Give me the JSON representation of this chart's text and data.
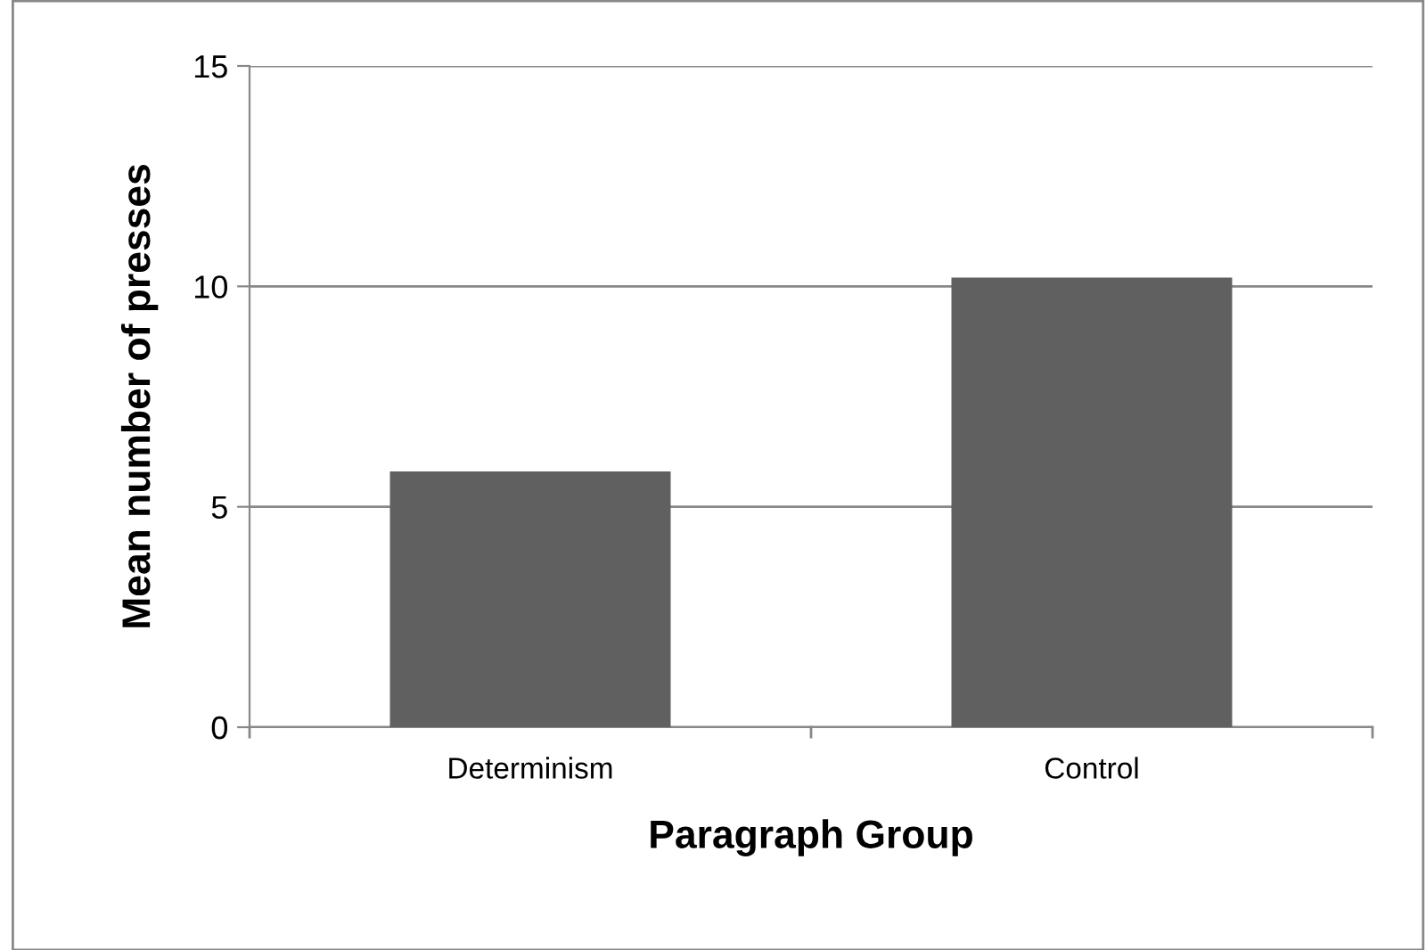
{
  "chart_data": {
    "type": "bar",
    "xlabel": "Paragraph Group",
    "ylabel": "Mean number of presses",
    "categories": [
      "Determinism",
      "Control"
    ],
    "values": [
      5.8,
      10.2
    ],
    "color": "#606060",
    "ylim": [
      0,
      15
    ],
    "yticks": [
      0,
      5,
      10,
      15
    ],
    "grid": "y",
    "legend": false
  }
}
